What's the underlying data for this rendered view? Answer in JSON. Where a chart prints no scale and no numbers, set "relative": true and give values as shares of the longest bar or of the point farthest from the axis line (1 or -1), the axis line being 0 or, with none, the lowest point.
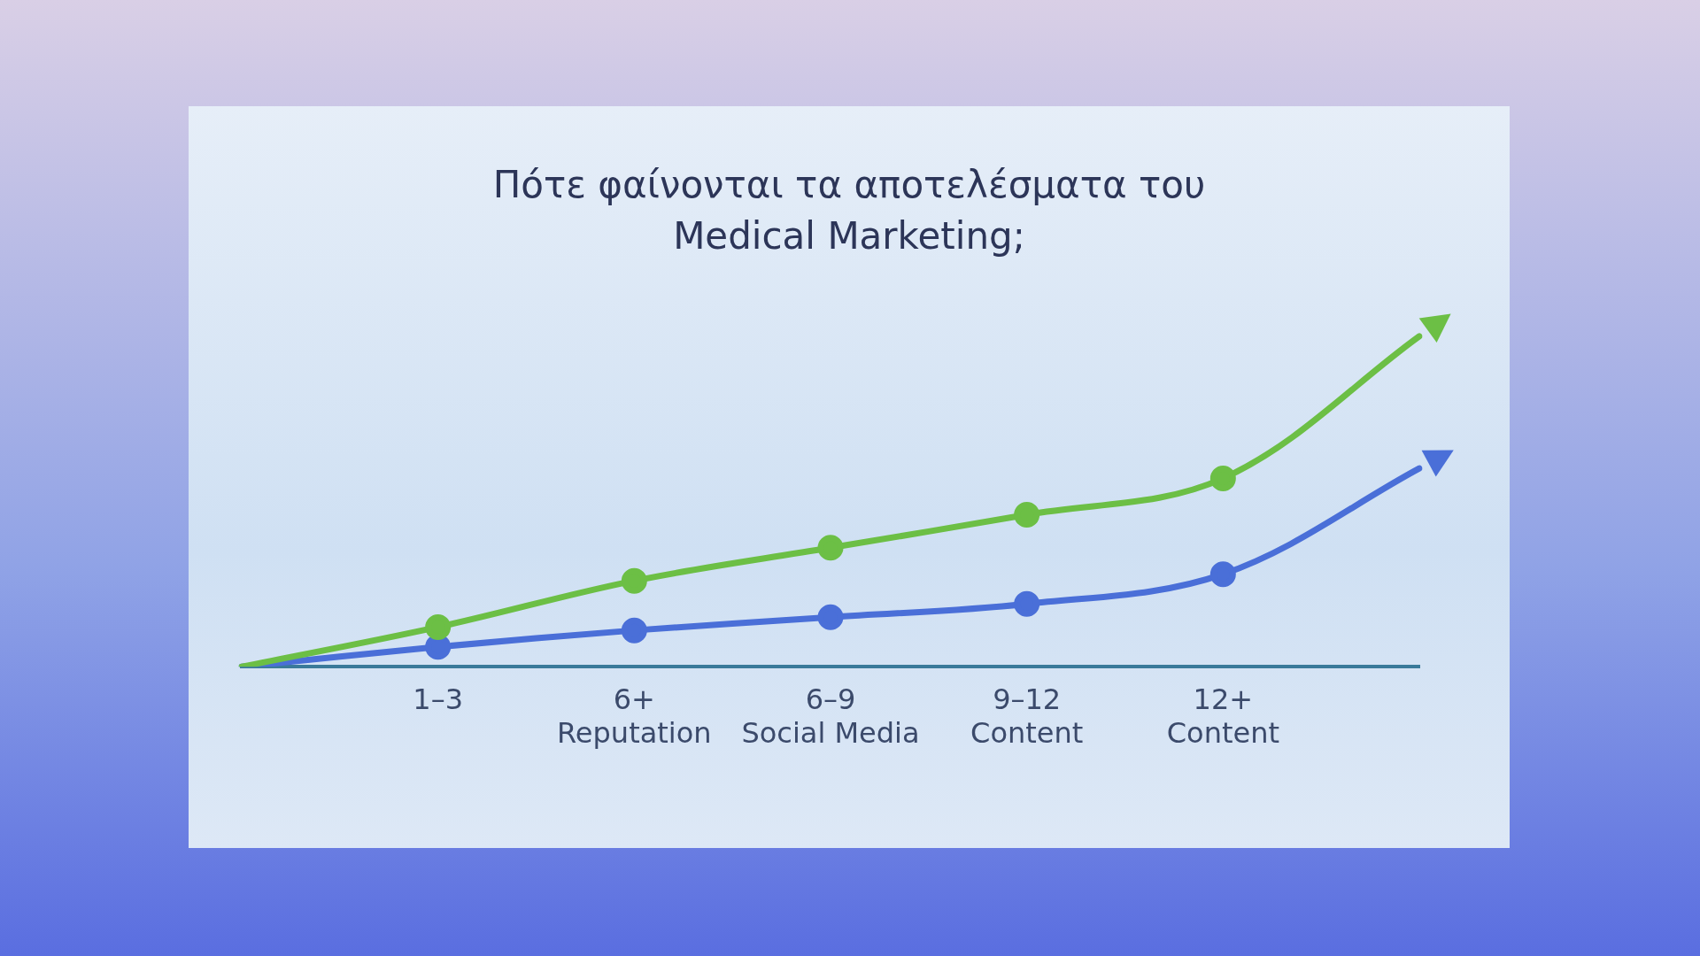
{
  "chart_data": {
    "type": "line",
    "title": "Πότε φαίνονται τα αποτελέσματα του Medical Marketing;",
    "relative": true,
    "categories": [
      null,
      "1–3",
      "6+\nReputation",
      "6–9\nSocial Media",
      "9–12\nContent",
      "12+\nContent",
      null
    ],
    "series": [
      {
        "color": "#6cbf45",
        "values": [
          0,
          0.12,
          0.26,
          0.36,
          0.46,
          0.57,
          1.0
        ]
      },
      {
        "color": "#4a6fd8",
        "values": [
          0,
          0.06,
          0.11,
          0.15,
          0.19,
          0.28,
          0.6
        ]
      }
    ],
    "grid": false,
    "legend": false,
    "marker": "circle",
    "line_style": "solid"
  }
}
